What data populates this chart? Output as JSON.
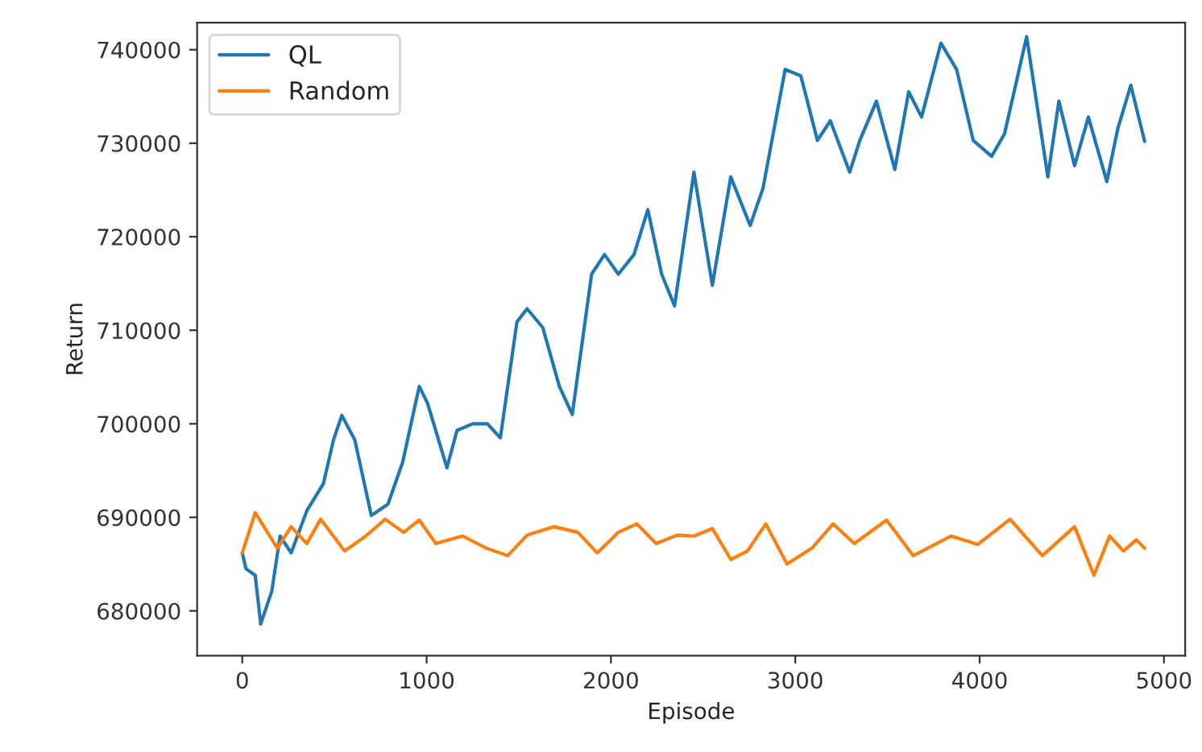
{
  "chart_data": {
    "type": "line",
    "xlabel": "Episode",
    "ylabel": "Return",
    "xlim": [
      -245,
      5115
    ],
    "ylim": [
      675200,
      742900
    ],
    "xticks": [
      0,
      1000,
      2000,
      3000,
      4000,
      5000
    ],
    "yticks": [
      680000,
      690000,
      700000,
      710000,
      720000,
      730000,
      740000
    ],
    "grid": false,
    "legend": "top left",
    "marker": "none",
    "line_style": "solid",
    "series": [
      {
        "name": "QL",
        "color": "#1f77b4",
        "x": [
          0,
          20,
          70,
          100,
          160,
          205,
          265,
          350,
          440,
          495,
          540,
          610,
          700,
          790,
          870,
          960,
          1005,
          1110,
          1165,
          1250,
          1330,
          1400,
          1490,
          1545,
          1630,
          1720,
          1790,
          1895,
          1965,
          2040,
          2125,
          2200,
          2275,
          2345,
          2450,
          2550,
          2650,
          2755,
          2825,
          2945,
          3030,
          3120,
          3190,
          3295,
          3350,
          3440,
          3540,
          3615,
          3685,
          3790,
          3875,
          3965,
          4065,
          4135,
          4255,
          4370,
          4430,
          4515,
          4590,
          4690,
          4750,
          4820,
          4895
        ],
        "values": [
          686200,
          684500,
          683800,
          678600,
          682100,
          688000,
          686200,
          690700,
          693600,
          698300,
          700900,
          698300,
          690200,
          691400,
          695900,
          704000,
          702200,
          695300,
          699300,
          700000,
          700000,
          698500,
          710900,
          712300,
          710300,
          704000,
          701000,
          716000,
          718100,
          716000,
          718100,
          722900,
          716000,
          712600,
          726900,
          714800,
          726400,
          721200,
          725200,
          737900,
          737200,
          730300,
          732400,
          726900,
          730300,
          734500,
          727200,
          735500,
          732800,
          740700,
          737900,
          730300,
          728600,
          731000,
          741400,
          726400,
          734500,
          727600,
          732800,
          725900,
          731600,
          736200,
          730200
        ]
      },
      {
        "name": "Random",
        "color": "#ff7f0e",
        "x": [
          0,
          70,
          190,
          265,
          350,
          425,
          555,
          670,
          775,
          875,
          960,
          1050,
          1195,
          1325,
          1440,
          1545,
          1690,
          1820,
          1925,
          2040,
          2140,
          2245,
          2360,
          2450,
          2550,
          2650,
          2740,
          2840,
          2955,
          3090,
          3205,
          3320,
          3495,
          3640,
          3845,
          3990,
          4165,
          4340,
          4515,
          4620,
          4705,
          4780,
          4850,
          4895
        ],
        "values": [
          686200,
          690500,
          686700,
          689000,
          687200,
          689800,
          686400,
          688000,
          689800,
          688400,
          689700,
          687200,
          688000,
          686700,
          685900,
          688100,
          689000,
          688400,
          686200,
          688400,
          689300,
          687200,
          688100,
          688000,
          688800,
          685500,
          686400,
          689300,
          685000,
          686700,
          689300,
          687200,
          689700,
          685900,
          688000,
          687100,
          689800,
          685900,
          689000,
          683800,
          688000,
          686400,
          687600,
          686700
        ]
      }
    ]
  }
}
